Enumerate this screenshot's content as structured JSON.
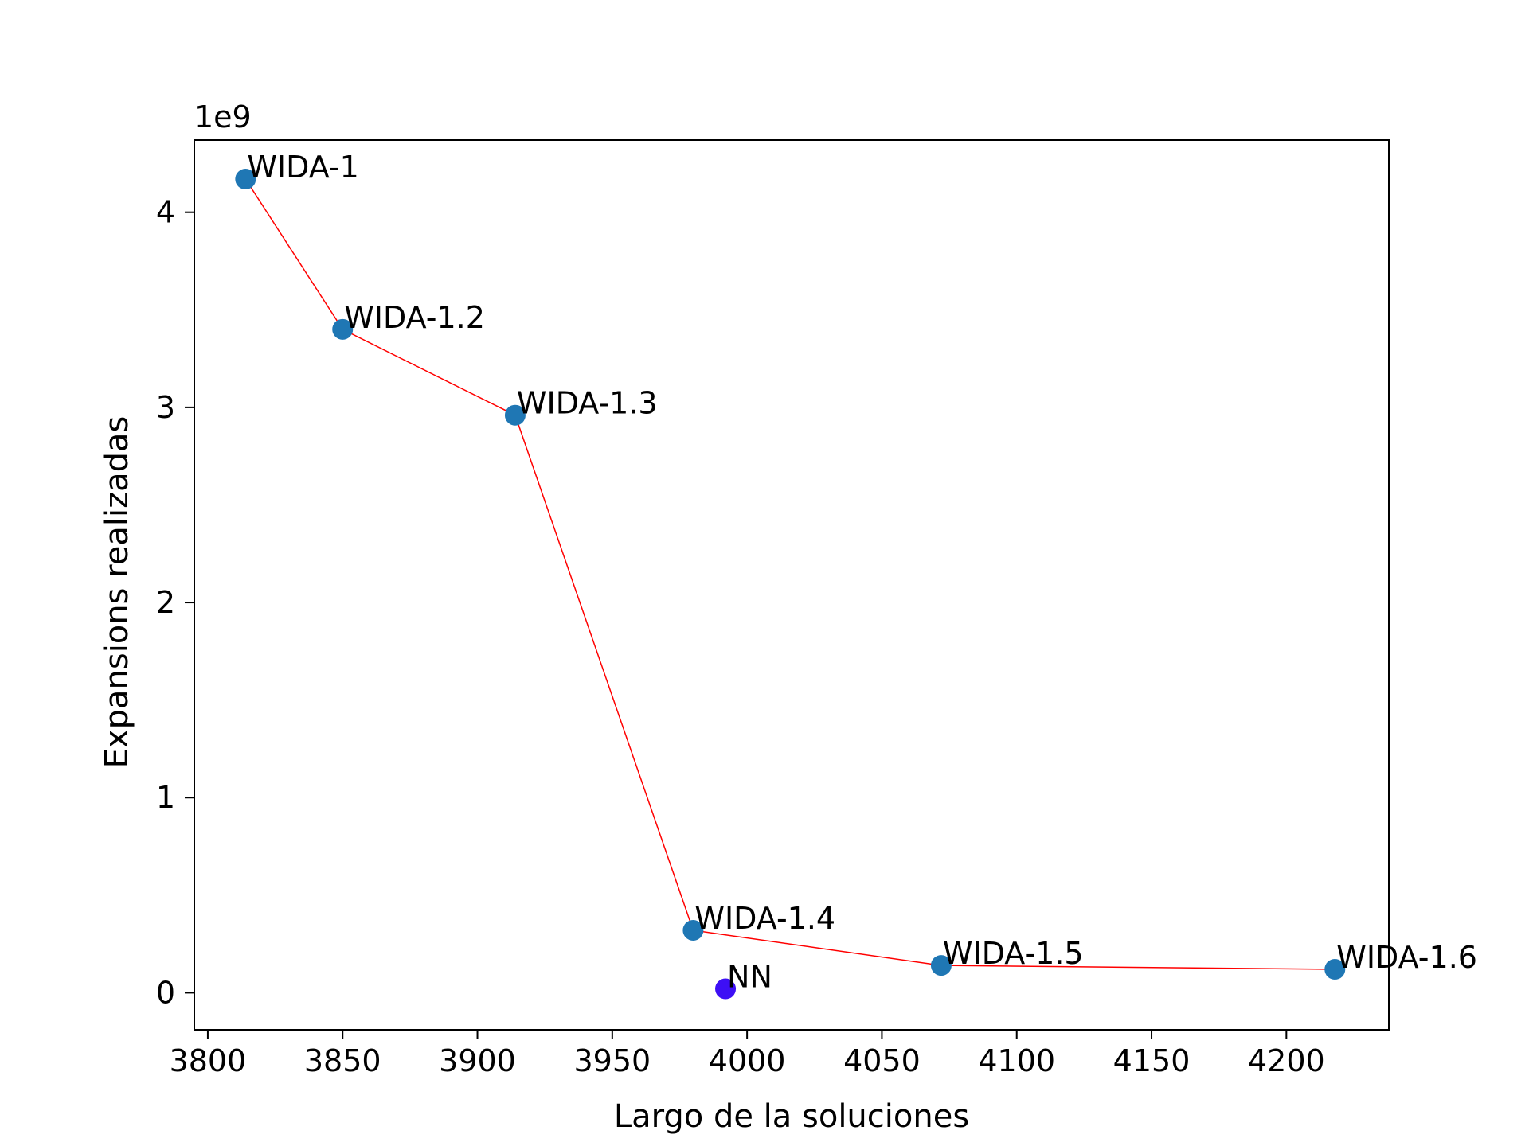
{
  "chart_data": {
    "type": "scatter",
    "title": "",
    "xlabel": "Largo de la soluciones",
    "ylabel": "Expansions realizadas",
    "y_offset_text": "1e9",
    "y_scale_factor": 1000000000,
    "xlim": [
      3795,
      4238
    ],
    "ylim": [
      -0.19,
      4.37
    ],
    "xticks": [
      3800,
      3850,
      3900,
      3950,
      4000,
      4050,
      4100,
      4150,
      4200
    ],
    "yticks": [
      0,
      1,
      2,
      3,
      4
    ],
    "grid": false,
    "legend": "none",
    "series": [
      {
        "marker_color": "#1f77b4",
        "line_color": "#ff0000",
        "points": [
          {
            "label": "WIDA-1",
            "x": 3814,
            "y": 4.17
          },
          {
            "label": "WIDA-1.2",
            "x": 3850,
            "y": 3.4
          },
          {
            "label": "WIDA-1.3",
            "x": 3914,
            "y": 2.96
          },
          {
            "label": "WIDA-1.4",
            "x": 3980,
            "y": 0.32
          },
          {
            "label": "WIDA-1.5",
            "x": 4072,
            "y": 0.14
          },
          {
            "label": "WIDA-1.6",
            "x": 4218,
            "y": 0.12
          }
        ]
      },
      {
        "marker_color": "#3d0ff5",
        "points": [
          {
            "label": "NN",
            "x": 3992,
            "y": 0.02
          }
        ]
      }
    ]
  }
}
